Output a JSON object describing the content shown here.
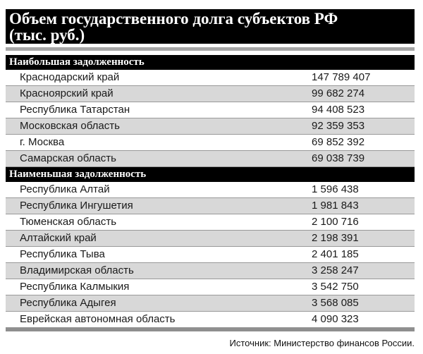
{
  "title": {
    "line1": "Объем государственного долга субъектов РФ",
    "line2": "(тыс. руб.)"
  },
  "source": "Источник: Министерство финансов России.",
  "sections": [
    {
      "header": "Наибольшая задолженность",
      "rows": [
        {
          "label": "Краснодарский край",
          "value": "147 789 407"
        },
        {
          "label": "Красноярский край",
          "value": "99 682 274"
        },
        {
          "label": "Республика Татарстан",
          "value": "94 408 523"
        },
        {
          "label": "Московская область",
          "value": "92 359 353"
        },
        {
          "label": "г. Москва",
          "value": "69 852 392"
        },
        {
          "label": "Самарская область",
          "value": "69 038 739"
        }
      ]
    },
    {
      "header": "Наименьшая задолженность",
      "rows": [
        {
          "label": "Республика Алтай",
          "value": "1 596 438"
        },
        {
          "label": "Республика Ингушетия",
          "value": "1 981 843"
        },
        {
          "label": "Тюменская область",
          "value": "2 100 716"
        },
        {
          "label": "Алтайский край",
          "value": "2 198 391"
        },
        {
          "label": "Республика Тыва",
          "value": "2 401 185"
        },
        {
          "label": "Владимирская область",
          "value": "3 258 247"
        },
        {
          "label": "Республика Калмыкия",
          "value": "3 542 750"
        },
        {
          "label": "Республика Адыгея",
          "value": "3 568 085"
        },
        {
          "label": "Еврейская автономная область",
          "value": "4 090 323"
        }
      ]
    }
  ],
  "colors": {
    "black": "#000000",
    "row-gray": "#d8d8d8",
    "line-gray": "#999999",
    "divider-gray": "#a6a6a6",
    "bottombar-gray": "#8f8f8f"
  },
  "chart_data": {
    "type": "table",
    "title": "Объем государственного долга субъектов РФ (тыс. руб.)",
    "units": "тыс. руб.",
    "source": "Министерство финансов России",
    "groups": [
      {
        "name": "Наибольшая задолженность",
        "regions": [
          "Краснодарский край",
          "Красноярский край",
          "Республика Татарстан",
          "Московская область",
          "г. Москва",
          "Самарская область"
        ],
        "values": [
          147789407,
          99682274,
          94408523,
          92359353,
          69852392,
          69038739
        ]
      },
      {
        "name": "Наименьшая задолженность",
        "regions": [
          "Республика Алтай",
          "Республика Ингушетия",
          "Тюменская область",
          "Алтайский край",
          "Республика Тыва",
          "Владимирская область",
          "Республика Калмыкия",
          "Республика Адыгея",
          "Еврейская автономная область"
        ],
        "values": [
          1596438,
          1981843,
          2100716,
          2198391,
          2401185,
          3258247,
          3542750,
          3568085,
          4090323
        ]
      }
    ]
  }
}
